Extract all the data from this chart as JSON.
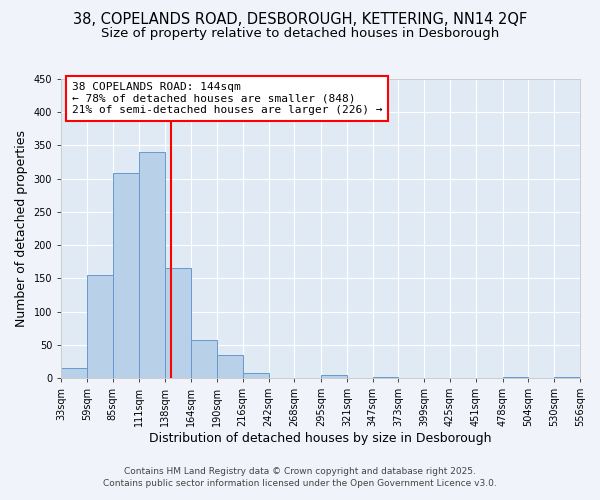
{
  "title_line1": "38, COPELANDS ROAD, DESBOROUGH, KETTERING, NN14 2QF",
  "title_line2": "Size of property relative to detached houses in Desborough",
  "xlabel": "Distribution of detached houses by size in Desborough",
  "ylabel": "Number of detached properties",
  "bin_edges": [
    33,
    59,
    85,
    111,
    138,
    164,
    190,
    216,
    242,
    268,
    295,
    321,
    347,
    373,
    399,
    425,
    451,
    478,
    504,
    530,
    556
  ],
  "bar_heights": [
    15,
    155,
    308,
    340,
    165,
    57,
    35,
    8,
    0,
    0,
    5,
    0,
    2,
    0,
    0,
    0,
    0,
    2,
    0,
    2
  ],
  "bar_color": "#b8d0e8",
  "bar_edgecolor": "#6699cc",
  "vline_x": 144,
  "vline_color": "red",
  "ylim": [
    0,
    450
  ],
  "yticks": [
    0,
    50,
    100,
    150,
    200,
    250,
    300,
    350,
    400,
    450
  ],
  "annotation_title": "38 COPELANDS ROAD: 144sqm",
  "annotation_line2": "← 78% of detached houses are smaller (848)",
  "annotation_line3": "21% of semi-detached houses are larger (226) →",
  "annotation_box_facecolor": "white",
  "annotation_box_edgecolor": "red",
  "fig_facecolor": "#f0f4fa",
  "plot_facecolor": "#e0eaf5",
  "footer_line1": "Contains HM Land Registry data © Crown copyright and database right 2025.",
  "footer_line2": "Contains public sector information licensed under the Open Government Licence v3.0.",
  "tick_labels": [
    "33sqm",
    "59sqm",
    "85sqm",
    "111sqm",
    "138sqm",
    "164sqm",
    "190sqm",
    "216sqm",
    "242sqm",
    "268sqm",
    "295sqm",
    "321sqm",
    "347sqm",
    "373sqm",
    "399sqm",
    "425sqm",
    "451sqm",
    "478sqm",
    "504sqm",
    "530sqm",
    "556sqm"
  ],
  "grid_color": "white",
  "title_fontsize": 10.5,
  "subtitle_fontsize": 9.5,
  "axis_label_fontsize": 9,
  "tick_fontsize": 7,
  "annotation_fontsize": 8,
  "footer_fontsize": 6.5
}
